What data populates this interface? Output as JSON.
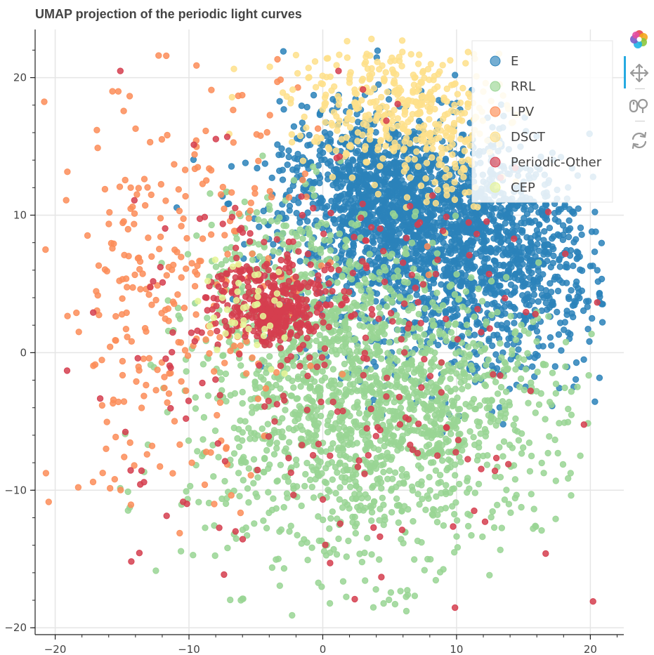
{
  "chart_data": {
    "type": "scatter",
    "title": "UMAP projection of the periodic light curves",
    "xlabel": "",
    "ylabel": "",
    "xlim": [
      -21.5,
      22.5
    ],
    "ylim": [
      -20.5,
      23.5
    ],
    "x_ticks": [
      -20,
      -10,
      0,
      10,
      20
    ],
    "x_tick_labels": [
      "−20",
      "−10",
      "0",
      "10",
      "20"
    ],
    "y_ticks": [
      20,
      10,
      0,
      -10,
      -20
    ],
    "y_tick_labels": [
      "20",
      "10",
      "0",
      "−10",
      "−20"
    ],
    "grid": true,
    "legend_position": "top-right",
    "series": [
      {
        "name": "E",
        "color": "#2b83ba",
        "clusters": [
          [
            6,
            10,
            4.5,
            3.5,
            1400
          ],
          [
            12,
            5,
            5,
            4,
            700
          ],
          [
            3,
            13,
            3,
            2.5,
            300
          ],
          [
            14,
            9,
            3,
            3,
            300
          ]
        ]
      },
      {
        "name": "RRL",
        "color": "#99d594",
        "clusters": [
          [
            2,
            -5,
            6,
            5.5,
            1100
          ],
          [
            8,
            -4,
            5,
            4,
            500
          ],
          [
            0,
            3,
            4,
            4,
            300
          ],
          [
            -5,
            7,
            2,
            2.5,
            80
          ]
        ]
      },
      {
        "name": "LPV",
        "color": "#fc8d59",
        "clusters": [
          [
            -10,
            5,
            5,
            8,
            240
          ],
          [
            -14,
            0,
            3,
            5,
            60
          ]
        ]
      },
      {
        "name": "DSCT",
        "color": "#fee08b",
        "clusters": [
          [
            5.5,
            18,
            4,
            2.2,
            350
          ],
          [
            9,
            15,
            2,
            2.2,
            100
          ]
        ]
      },
      {
        "name": "Periodic-Other",
        "color": "#d53e4f",
        "clusters": [
          [
            -4,
            4,
            2.2,
            1.8,
            260
          ],
          [
            -3.5,
            2.5,
            1.2,
            0.8,
            120
          ],
          [
            4,
            0,
            7,
            8,
            180
          ],
          [
            -10,
            0,
            5,
            8,
            60
          ]
        ]
      },
      {
        "name": "CEP",
        "color": "#e6f598",
        "clusters": [
          [
            -6,
            3,
            2,
            2,
            40
          ]
        ]
      }
    ]
  },
  "toolbar": {
    "logo_icon": "bokeh-logo-icon",
    "tools": [
      "pan-icon",
      "wheel-zoom-icon",
      "reset-icon"
    ]
  }
}
